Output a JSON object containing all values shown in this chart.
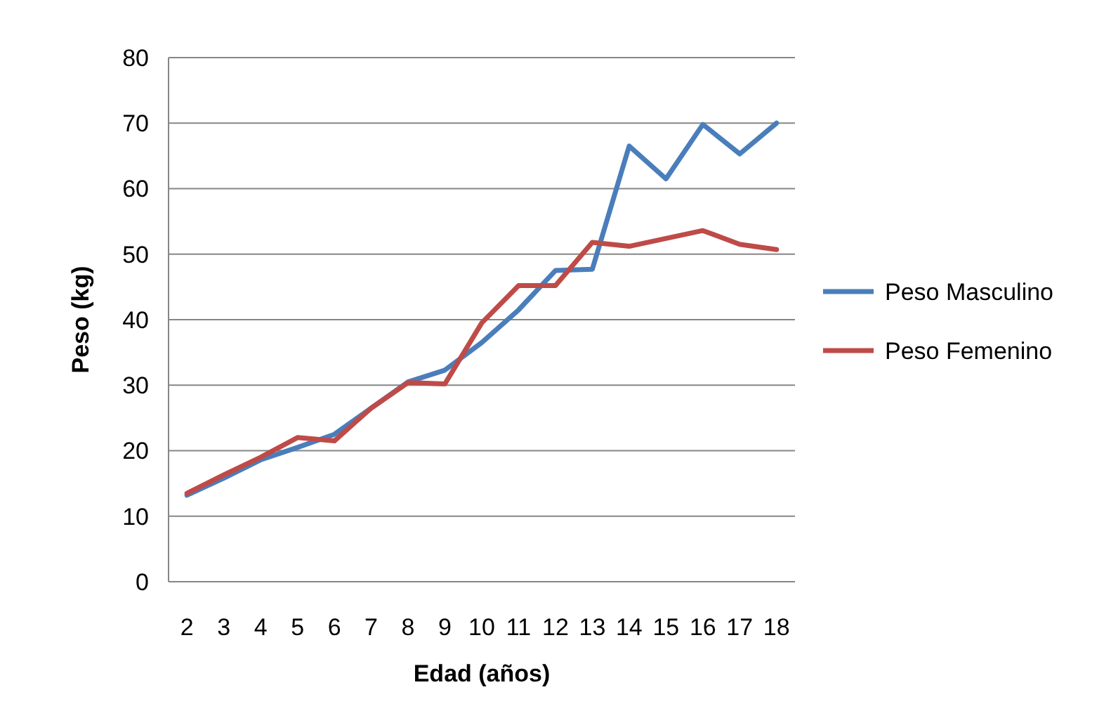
{
  "chart_data": {
    "type": "line",
    "xlabel": "Edad (años)",
    "ylabel": "Peso (kg)",
    "categories": [
      "2",
      "3",
      "4",
      "5",
      "6",
      "7",
      "8",
      "9",
      "10",
      "11",
      "12",
      "13",
      "14",
      "15",
      "16",
      "17",
      "18"
    ],
    "series": [
      {
        "name": "Peso Masculino",
        "color": "#4a7ebb",
        "values": [
          13.2,
          15.8,
          18.6,
          20.5,
          22.5,
          26.5,
          30.5,
          32.3,
          36.5,
          41.5,
          47.5,
          47.7,
          66.5,
          61.5,
          69.8,
          65.3,
          70
        ]
      },
      {
        "name": "Peso Femenino",
        "color": "#be4b48",
        "values": [
          13.5,
          16.3,
          19,
          22,
          21.5,
          26.5,
          30.4,
          30.2,
          39.5,
          45.2,
          45.2,
          51.8,
          51.2,
          52.4,
          53.6,
          51.5,
          50.7
        ]
      }
    ],
    "ylim": [
      0,
      80
    ],
    "yticks": [
      0,
      10,
      20,
      30,
      40,
      50,
      60,
      70,
      80
    ],
    "grid": "y",
    "legend": "right",
    "marker": "none",
    "line_style": "solid"
  }
}
